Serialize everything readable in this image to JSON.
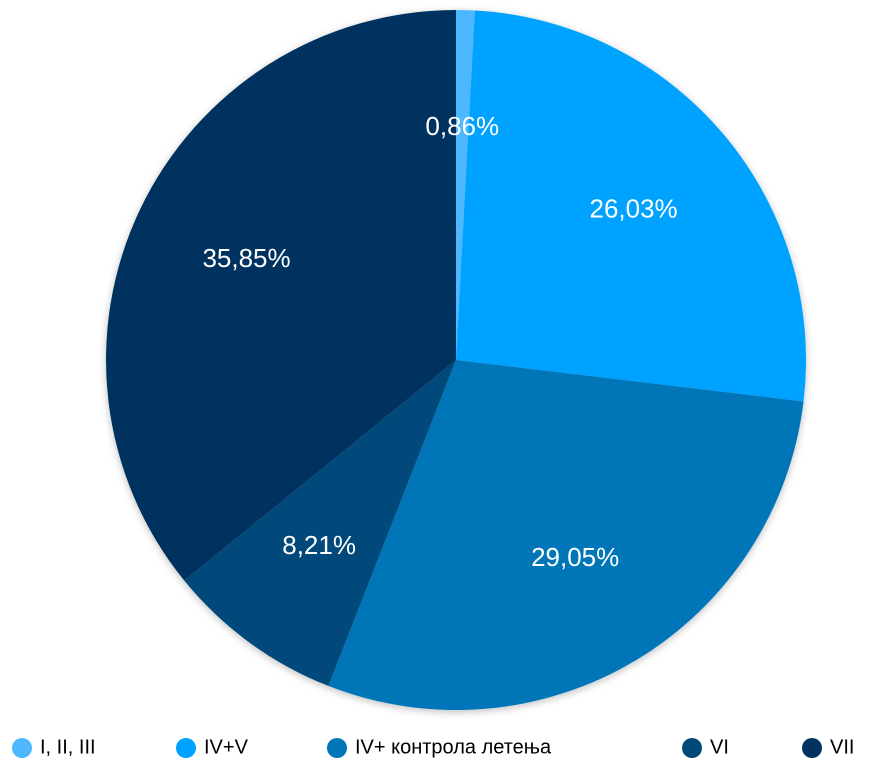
{
  "chart_data": {
    "type": "pie",
    "categories": [
      "I, II, III",
      "IV+V",
      "IV+ контрола летења",
      "VI",
      "VII"
    ],
    "values": [
      0.86,
      26.03,
      29.05,
      8.21,
      35.85
    ],
    "value_labels": [
      "0,86%",
      "26,03%",
      "29,05%",
      "8,21%",
      "35,85%"
    ],
    "colors": [
      "#4db8ff",
      "#00a2ff",
      "#0075b8",
      "#004a7a",
      "#00335f"
    ],
    "legend": "bottom"
  }
}
